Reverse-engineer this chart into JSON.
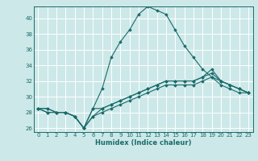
{
  "title": "",
  "xlabel": "Humidex (Indice chaleur)",
  "ylabel": "",
  "bg_color": "#cde8e8",
  "line_color": "#1a6b6b",
  "grid_color": "#ffffff",
  "xlim": [
    -0.5,
    23.5
  ],
  "ylim": [
    25.5,
    41.5
  ],
  "yticks": [
    26,
    28,
    30,
    32,
    34,
    36,
    38,
    40
  ],
  "xticks": [
    0,
    1,
    2,
    3,
    4,
    5,
    6,
    7,
    8,
    9,
    10,
    11,
    12,
    13,
    14,
    15,
    16,
    17,
    18,
    19,
    20,
    21,
    22,
    23
  ],
  "curves": [
    {
      "x": [
        0,
        1,
        2,
        3,
        4,
        5,
        6,
        7,
        8,
        9,
        10,
        11,
        12,
        13,
        14,
        15,
        16,
        17,
        18,
        19,
        20,
        21,
        22,
        23
      ],
      "y": [
        28.5,
        28.5,
        28.0,
        28.0,
        27.5,
        26.0,
        28.5,
        31.0,
        35.0,
        37.0,
        38.5,
        40.5,
        41.5,
        41.0,
        40.5,
        38.5,
        36.5,
        35.0,
        33.5,
        32.5,
        32.0,
        31.5,
        31.0,
        30.5
      ]
    },
    {
      "x": [
        0,
        1,
        2,
        3,
        4,
        5,
        6,
        7,
        8,
        9,
        10,
        11,
        12,
        13,
        14,
        15,
        16,
        17,
        18,
        19,
        20,
        21,
        22,
        23
      ],
      "y": [
        28.5,
        28.5,
        28.0,
        28.0,
        27.5,
        26.0,
        28.5,
        28.5,
        29.0,
        29.5,
        30.0,
        30.5,
        31.0,
        31.5,
        32.0,
        32.0,
        32.0,
        32.0,
        32.5,
        33.5,
        32.0,
        31.5,
        31.0,
        30.5
      ]
    },
    {
      "x": [
        0,
        1,
        2,
        3,
        4,
        5,
        6,
        7,
        8,
        9,
        10,
        11,
        12,
        13,
        14,
        15,
        16,
        17,
        18,
        19,
        20,
        21,
        22,
        23
      ],
      "y": [
        28.5,
        28.0,
        28.0,
        28.0,
        27.5,
        26.0,
        27.5,
        28.5,
        29.0,
        29.5,
        30.0,
        30.5,
        31.0,
        31.5,
        32.0,
        32.0,
        32.0,
        32.0,
        32.5,
        33.0,
        32.0,
        31.5,
        31.0,
        30.5
      ]
    },
    {
      "x": [
        0,
        1,
        2,
        3,
        4,
        5,
        6,
        7,
        8,
        9,
        10,
        11,
        12,
        13,
        14,
        15,
        16,
        17,
        18,
        19,
        20,
        21,
        22,
        23
      ],
      "y": [
        28.5,
        28.0,
        28.0,
        28.0,
        27.5,
        26.0,
        27.5,
        28.0,
        28.5,
        29.0,
        29.5,
        30.0,
        30.5,
        31.0,
        31.5,
        31.5,
        31.5,
        31.5,
        32.0,
        32.5,
        31.5,
        31.0,
        30.5,
        30.5
      ]
    }
  ]
}
